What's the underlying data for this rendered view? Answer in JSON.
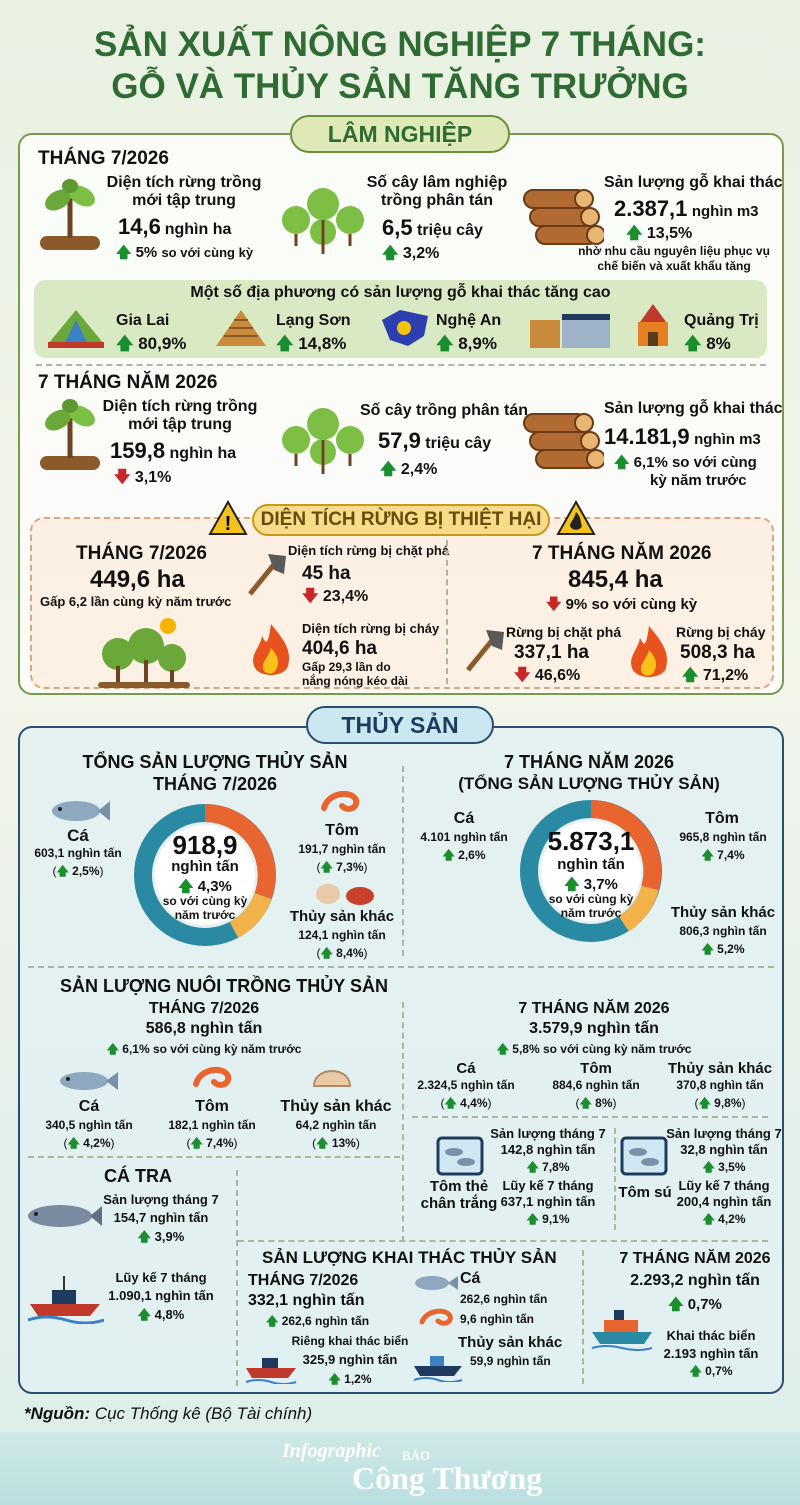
{
  "title": {
    "line1": "SẢN XUẤT NÔNG NGHIỆP 7 THÁNG:",
    "line2": "GỖ VÀ THỦY SẢN TĂNG TRƯỞNG"
  },
  "lam": {
    "section": "LÂM NGHIỆP",
    "m7": {
      "heading": "THÁNG 7/2026",
      "a": {
        "label": "Diện tích rừng trồng mới tập trung",
        "value": "14,6",
        "unit": "nghìn ha",
        "change": "5%",
        "note": "so với cùng kỳ"
      },
      "b": {
        "label": "Số cây lâm nghiệp trồng phân tán",
        "value": "6,5",
        "unit": "triệu cây",
        "change": "3,2%"
      },
      "c": {
        "label": "Sản lượng gỗ khai thác",
        "value": "2.387,1",
        "unit": "nghìn m3",
        "change": "13,5%",
        "note": "nhờ nhu cầu nguyên liệu phục vụ chế biến và xuất khẩu tăng"
      }
    },
    "provinces": {
      "heading": "Một số địa phương có sản lượng gỗ khai thác tăng cao",
      "items": [
        {
          "name": "Gia Lai",
          "value": "80,9%"
        },
        {
          "name": "Lạng Sơn",
          "value": "14,8%"
        },
        {
          "name": "Nghệ An",
          "value": "8,9%"
        },
        {
          "name": "Quảng Trị",
          "value": "8%"
        }
      ]
    },
    "y7": {
      "heading": "7 THÁNG NĂM 2026",
      "a": {
        "label": "Diện tích rừng trồng mới tập trung",
        "value": "159,8",
        "unit": "nghìn ha",
        "change": "3,1%"
      },
      "b": {
        "label": "Số cây trồng phân tán",
        "value": "57,9",
        "unit": "triệu cây",
        "change": "2,4%"
      },
      "c": {
        "label": "Sản lượng gỗ khai thác",
        "value": "14.181,9",
        "unit": "nghìn m3",
        "change": "6,1%",
        "note1": "so với cùng",
        "note2": "kỳ năm trước"
      }
    },
    "damage": {
      "heading": "DIỆN TÍCH RỪNG BỊ THIỆT HẠI",
      "m7": {
        "heading": "THÁNG 7/2026",
        "value": "449,6 ha",
        "note": "Gấp 6,2 lần cùng kỳ năm trước",
        "cut": {
          "label": "Diện tích rừng bị chặt phá",
          "value": "45 ha",
          "change": "23,4%"
        },
        "fire": {
          "label": "Diện tích rừng bị cháy",
          "value": "404,6 ha",
          "note1": "Gấp 29,3 lần do",
          "note2": "nắng nóng kéo dài"
        }
      },
      "y7": {
        "heading": "7 THÁNG NĂM 2026",
        "value": "845,4 ha",
        "change": "9%",
        "note": "so với cùng kỳ",
        "cut": {
          "label": "Rừng bị chặt phá",
          "value": "337,1 ha",
          "change": "46,6%"
        },
        "fire": {
          "label": "Rừng bị cháy",
          "value": "508,3 ha",
          "change": "71,2%"
        }
      }
    }
  },
  "thuy": {
    "section": "THỦY SẢN",
    "total_m7": {
      "heading1": "TỔNG SẢN LƯỢNG THỦY SẢN",
      "heading2": "THÁNG 7/2026",
      "value": "918,9",
      "unit": "nghìn tấn",
      "change": "4,3%",
      "note": "so với cùng kỳ năm trước",
      "ca": {
        "label": "Cá",
        "value": "603,1 nghìn tấn",
        "change": "2,5%"
      },
      "tom": {
        "label": "Tôm",
        "value": "191,7 nghìn tấn",
        "change": "7,3%"
      },
      "khac": {
        "label": "Thủy sản khác",
        "value": "124,1 nghìn tấn",
        "change": "8,4%"
      }
    },
    "total_y7": {
      "heading1": "7 THÁNG NĂM 2026",
      "heading2": "(TỔNG SẢN LƯỢNG THỦY SẢN)",
      "value": "5.873,1",
      "unit": "nghìn tấn",
      "change": "3,7%",
      "note": "so với cùng kỳ năm trước",
      "ca": {
        "label": "Cá",
        "value": "4.101 nghìn tấn",
        "change": "2,6%"
      },
      "tom": {
        "label": "Tôm",
        "value": "965,8 nghìn tấn",
        "change": "7,4%"
      },
      "khac": {
        "label": "Thủy sản khác",
        "value": "806,3 nghìn tấn",
        "change": "5,2%"
      }
    },
    "nuoi": {
      "heading": "SẢN LƯỢNG NUÔI TRỒNG THỦY SẢN",
      "m7": {
        "heading": "THÁNG 7/2026",
        "value": "586,8 nghìn tấn",
        "change": "6,1% so với cùng kỳ năm trước",
        "ca": {
          "label": "Cá",
          "value": "340,5 nghìn tấn",
          "change": "4,2%"
        },
        "tom": {
          "label": "Tôm",
          "value": "182,1 nghìn tấn",
          "change": "7,4%"
        },
        "khac": {
          "label": "Thủy sản khác",
          "value": "64,2 nghìn tấn",
          "change": "13%"
        }
      },
      "y7": {
        "heading": "7 THÁNG NĂM 2026",
        "value": "3.579,9 nghìn tấn",
        "change": "5,8% so với cùng kỳ năm trước",
        "ca": {
          "label": "Cá",
          "value": "2.324,5 nghìn tấn",
          "change": "4,4%"
        },
        "tom": {
          "label": "Tôm",
          "value": "884,6 nghìn tấn",
          "change": "8%"
        },
        "khac": {
          "label": "Thủy sản khác",
          "value": "370,8 nghìn tấn",
          "change": "9,8%"
        }
      },
      "thechan": {
        "name1": "Tôm thẻ",
        "name2": "chân trắng",
        "m_label": "Sản lượng tháng 7",
        "m_value": "142,8 nghìn tấn",
        "m_change": "7,8%",
        "c_label": "Lũy kế 7 tháng",
        "c_value": "637,1 nghìn tấn",
        "c_change": "9,1%"
      },
      "tomsu": {
        "name": "Tôm sú",
        "m_label": "Sản lượng tháng 7",
        "m_value": "32,8 nghìn tấn",
        "m_change": "3,5%",
        "c_label": "Lũy kế 7 tháng",
        "c_value": "200,4 nghìn tấn",
        "c_change": "4,2%"
      }
    },
    "catra": {
      "heading": "CÁ TRA",
      "m_label": "Sản lượng tháng 7",
      "m_value": "154,7 nghìn tấn",
      "m_change": "3,9%",
      "c_label": "Lũy kế 7 tháng",
      "c_value": "1.090,1 nghìn tấn",
      "c_change": "4,8%"
    },
    "khaithac": {
      "heading": "SẢN LƯỢNG KHAI THÁC THỦY SẢN",
      "m7": {
        "heading": "THÁNG 7/2026",
        "value": "332,1 nghìn tấn",
        "change": "262,6 nghìn tấn",
        "bien_label": "Riêng khai thác biển",
        "bien_value": "325,9 nghìn tấn",
        "bien_change": "1,2%",
        "ca": {
          "label": "Cá",
          "value1": "262,6 nghìn tấn",
          "value2": "9,6 nghìn tấn"
        },
        "khac": {
          "label": "Thủy sản khác",
          "value": "59,9 nghìn tấn"
        }
      },
      "y7": {
        "heading": "7 THÁNG NĂM 2026",
        "value": "2.293,2 nghìn tấn",
        "change": "0,7%",
        "bien_label": "Khai thác biển",
        "bien_value": "2.193 nghìn tấn",
        "bien_change": "0,7%"
      }
    }
  },
  "source": {
    "label": "*Nguồn:",
    "text": "Cục Thống kê (Bộ Tài chính)"
  },
  "brand": {
    "infographic": "Infographic",
    "bao": "BÁO",
    "name": "Công Thương"
  }
}
